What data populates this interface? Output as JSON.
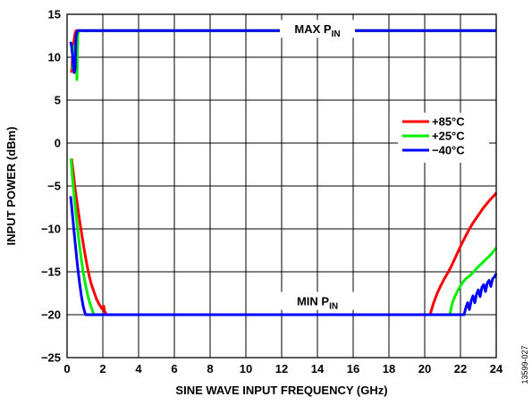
{
  "chart_data": {
    "type": "line",
    "title": "",
    "xlabel": "SINE WAVE INPUT FREQUENCY (GHz)",
    "ylabel": "INPUT POWER (dBm)",
    "xlim": [
      0,
      24
    ],
    "ylim": [
      -25,
      15
    ],
    "xticks": [
      0,
      2,
      4,
      6,
      8,
      10,
      12,
      14,
      16,
      18,
      20,
      22,
      24
    ],
    "yticks": [
      -25,
      -20,
      -15,
      -10,
      -5,
      0,
      5,
      10,
      15
    ],
    "grid": true,
    "legend_position": "right",
    "figure_id": "13599-027",
    "annotations": [
      {
        "text": "MAX P",
        "sub": "IN",
        "x": 14.0,
        "y": 13.0
      },
      {
        "text": "MIN P",
        "sub": "IN",
        "x": 14.0,
        "y": -18.7
      }
    ],
    "series": [
      {
        "name": "+85°C",
        "color": "#ff0000",
        "segments": [
          {
            "label": "max",
            "points": [
              [
                0.25,
                8.2
              ],
              [
                0.3,
                9.8
              ],
              [
                0.35,
                11.0
              ],
              [
                0.4,
                12.1
              ],
              [
                0.45,
                12.8
              ],
              [
                0.5,
                13.1
              ],
              [
                24,
                13.1
              ]
            ]
          },
          {
            "label": "min",
            "points": [
              [
                0.25,
                -1.8
              ],
              [
                0.35,
                -3.5
              ],
              [
                0.45,
                -5.3
              ],
              [
                0.55,
                -6.8
              ],
              [
                0.65,
                -8.3
              ],
              [
                0.75,
                -9.7
              ],
              [
                0.85,
                -11.0
              ],
              [
                0.95,
                -12.3
              ],
              [
                1.05,
                -13.5
              ],
              [
                1.15,
                -14.6
              ],
              [
                1.25,
                -15.6
              ],
              [
                1.35,
                -16.4
              ],
              [
                1.45,
                -17.0
              ],
              [
                1.55,
                -17.6
              ],
              [
                1.65,
                -18.2
              ],
              [
                1.8,
                -18.8
              ],
              [
                1.95,
                -19.3
              ],
              [
                2.05,
                -19.0
              ],
              [
                2.1,
                -19.6
              ],
              [
                2.2,
                -20.0
              ],
              [
                20.3,
                -20.0
              ],
              [
                20.5,
                -18.6
              ],
              [
                20.7,
                -17.5
              ],
              [
                20.9,
                -16.6
              ],
              [
                21.1,
                -15.8
              ],
              [
                21.3,
                -15.1
              ],
              [
                21.5,
                -14.3
              ],
              [
                21.7,
                -13.4
              ],
              [
                21.9,
                -12.5
              ],
              [
                22.1,
                -11.6
              ],
              [
                22.3,
                -10.8
              ],
              [
                22.5,
                -10.0
              ],
              [
                22.7,
                -9.3
              ],
              [
                22.9,
                -8.7
              ],
              [
                23.1,
                -8.1
              ],
              [
                23.3,
                -7.5
              ],
              [
                23.5,
                -7.0
              ],
              [
                23.7,
                -6.5
              ],
              [
                23.85,
                -6.2
              ],
              [
                24.0,
                -5.8
              ]
            ]
          }
        ]
      },
      {
        "name": "+25°C",
        "color": "#00ee00",
        "segments": [
          {
            "label": "max",
            "points": [
              [
                0.3,
                8.6
              ],
              [
                0.35,
                10.2
              ],
              [
                0.4,
                11.3
              ],
              [
                0.45,
                9.5
              ],
              [
                0.5,
                12.2
              ],
              [
                0.55,
                7.4
              ],
              [
                0.6,
                12.6
              ],
              [
                0.65,
                13.1
              ],
              [
                24,
                13.1
              ]
            ]
          },
          {
            "label": "min",
            "points": [
              [
                0.22,
                -1.8
              ],
              [
                0.3,
                -4.0
              ],
              [
                0.4,
                -6.2
              ],
              [
                0.5,
                -8.3
              ],
              [
                0.6,
                -10.2
              ],
              [
                0.7,
                -12.0
              ],
              [
                0.8,
                -13.6
              ],
              [
                0.9,
                -15.0
              ],
              [
                1.0,
                -16.2
              ],
              [
                1.1,
                -17.2
              ],
              [
                1.2,
                -18.1
              ],
              [
                1.3,
                -18.8
              ],
              [
                1.4,
                -19.4
              ],
              [
                1.5,
                -20.0
              ],
              [
                21.4,
                -20.0
              ],
              [
                21.55,
                -18.6
              ],
              [
                21.7,
                -17.8
              ],
              [
                21.9,
                -17.0
              ],
              [
                22.1,
                -16.3
              ],
              [
                22.3,
                -15.8
              ],
              [
                22.5,
                -15.5
              ],
              [
                22.7,
                -15.1
              ],
              [
                22.9,
                -14.6
              ],
              [
                23.1,
                -14.2
              ],
              [
                23.3,
                -13.8
              ],
              [
                23.5,
                -13.4
              ],
              [
                23.7,
                -13.0
              ],
              [
                23.85,
                -12.6
              ],
              [
                24.0,
                -12.2
              ]
            ]
          }
        ]
      },
      {
        "name": "−40°C",
        "color": "#0000ff",
        "segments": [
          {
            "label": "max",
            "points": [
              [
                0.2,
                11.8
              ],
              [
                0.25,
                11.3
              ],
              [
                0.3,
                10.4
              ],
              [
                0.35,
                9.0
              ],
              [
                0.4,
                8.2
              ],
              [
                0.45,
                8.6
              ],
              [
                0.5,
                12.4
              ],
              [
                0.55,
                12.9
              ],
              [
                0.6,
                13.1
              ],
              [
                24,
                13.1
              ]
            ]
          },
          {
            "label": "min",
            "points": [
              [
                0.2,
                -6.2
              ],
              [
                0.3,
                -8.3
              ],
              [
                0.4,
                -10.5
              ],
              [
                0.5,
                -12.6
              ],
              [
                0.6,
                -14.6
              ],
              [
                0.7,
                -16.3
              ],
              [
                0.8,
                -17.8
              ],
              [
                0.9,
                -19.0
              ],
              [
                1.0,
                -19.8
              ],
              [
                1.05,
                -20.0
              ],
              [
                22.2,
                -20.0
              ],
              [
                22.3,
                -19.2
              ],
              [
                22.4,
                -18.6
              ],
              [
                22.5,
                -19.4
              ],
              [
                22.6,
                -18.4
              ],
              [
                22.7,
                -17.8
              ],
              [
                22.8,
                -18.6
              ],
              [
                22.9,
                -17.6
              ],
              [
                23.0,
                -17.1
              ],
              [
                23.1,
                -17.9
              ],
              [
                23.2,
                -16.8
              ],
              [
                23.3,
                -16.5
              ],
              [
                23.4,
                -17.3
              ],
              [
                23.5,
                -16.3
              ],
              [
                23.6,
                -16.0
              ],
              [
                23.7,
                -16.7
              ],
              [
                23.8,
                -15.8
              ],
              [
                23.9,
                -15.6
              ],
              [
                24.0,
                -15.2
              ]
            ]
          }
        ]
      }
    ]
  }
}
